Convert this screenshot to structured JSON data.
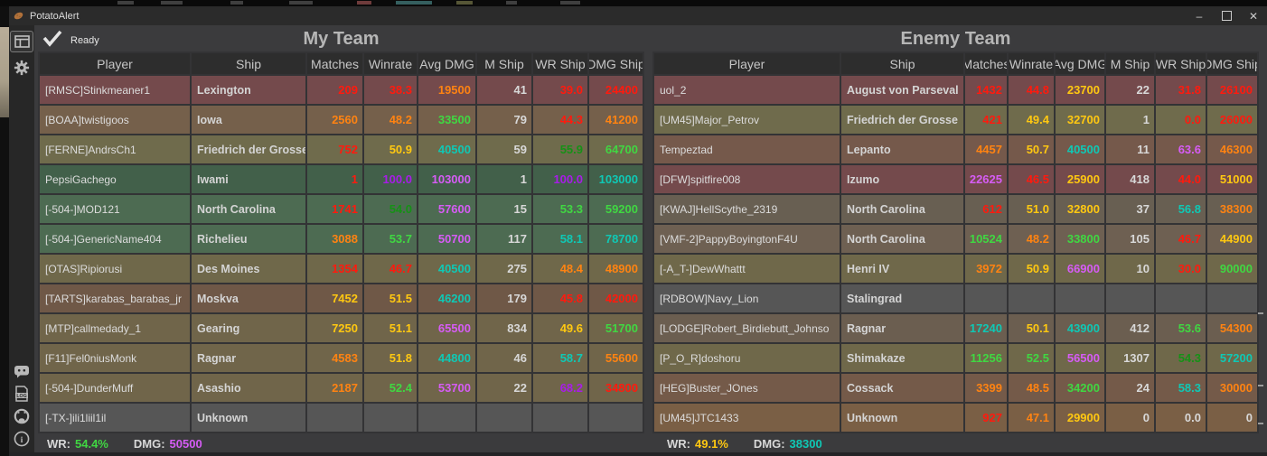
{
  "window": {
    "title": "PotatoAlert",
    "status": "Ready",
    "controls": {
      "minimize": "–",
      "close": "✕"
    }
  },
  "sidebar": {
    "icons": [
      "table-view",
      "settings",
      "discord",
      "log-file",
      "github",
      "info"
    ],
    "log_icon_text": "LOG",
    "info_icon_text": "i"
  },
  "palette": {
    "r": "#ff1a0e",
    "o": "#ff8312",
    "y": "#ffc811",
    "lg": "#40d742",
    "g": "#169116",
    "c": "#0fc8b5",
    "m": "#d65cf5",
    "p": "#a81ce8",
    "w": "#d8d8d8"
  },
  "teams": [
    {
      "title": "My Team",
      "columns": [
        "Player",
        "Ship",
        "Matches",
        "Winrate",
        "Avg DMG",
        "M Ship",
        "WR Ship",
        "DMG Ship"
      ],
      "footer": {
        "wr_label": "WR:",
        "wr": "54.4%",
        "wr_color": "lg",
        "dmg_label": "DMG:",
        "dmg": "50500",
        "dmg_color": "m"
      },
      "rows": [
        {
          "player": "[RMSC]Stinkmeaner1",
          "ship": "Lexington",
          "bg": "#744a4c",
          "stats": [
            [
              "209",
              "r"
            ],
            [
              "38.3",
              "r"
            ],
            [
              "19500",
              "o"
            ],
            [
              "41",
              "w"
            ],
            [
              "39.0",
              "r"
            ],
            [
              "24400",
              "r"
            ]
          ]
        },
        {
          "player": "[BOAA]twistigoos",
          "ship": "Iowa",
          "bg": "#75604b",
          "stats": [
            [
              "2560",
              "o"
            ],
            [
              "48.2",
              "o"
            ],
            [
              "33500",
              "lg"
            ],
            [
              "79",
              "w"
            ],
            [
              "44.3",
              "r"
            ],
            [
              "41200",
              "o"
            ]
          ]
        },
        {
          "player": "[FERNE]AndrsCh1",
          "ship": "Friedrich der Grosse",
          "bg": "#6f6b4c",
          "stats": [
            [
              "752",
              "r"
            ],
            [
              "50.9",
              "y"
            ],
            [
              "40500",
              "c"
            ],
            [
              "59",
              "w"
            ],
            [
              "55.9",
              "g"
            ],
            [
              "64700",
              "lg"
            ]
          ]
        },
        {
          "player": "PepsiGachego",
          "ship": "Iwami",
          "bg": "#42604a",
          "stats": [
            [
              "1",
              "r"
            ],
            [
              "100.0",
              "p"
            ],
            [
              "103000",
              "m"
            ],
            [
              "1",
              "w"
            ],
            [
              "100.0",
              "p"
            ],
            [
              "103000",
              "c"
            ]
          ]
        },
        {
          "player": "[-504-]MOD121",
          "ship": "North Carolina",
          "bg": "#4d6b52",
          "stats": [
            [
              "1741",
              "r"
            ],
            [
              "54.0",
              "g"
            ],
            [
              "57600",
              "m"
            ],
            [
              "15",
              "w"
            ],
            [
              "53.3",
              "lg"
            ],
            [
              "59200",
              "lg"
            ]
          ]
        },
        {
          "player": "[-504-]GenericName404",
          "ship": "Richelieu",
          "bg": "#4d6b52",
          "stats": [
            [
              "3088",
              "o"
            ],
            [
              "53.7",
              "lg"
            ],
            [
              "50700",
              "m"
            ],
            [
              "117",
              "w"
            ],
            [
              "58.1",
              "c"
            ],
            [
              "78700",
              "c"
            ]
          ]
        },
        {
          "player": "[OTAS]Ripiorusi",
          "ship": "Des Moines",
          "bg": "#6f684a",
          "stats": [
            [
              "1354",
              "r"
            ],
            [
              "46.7",
              "r"
            ],
            [
              "40500",
              "c"
            ],
            [
              "275",
              "w"
            ],
            [
              "48.4",
              "o"
            ],
            [
              "48900",
              "o"
            ]
          ]
        },
        {
          "player": "[TARTS]karabas_barabas_jr",
          "ship": "Moskva",
          "bg": "#6f5847",
          "stats": [
            [
              "7452",
              "y"
            ],
            [
              "51.5",
              "y"
            ],
            [
              "46200",
              "c"
            ],
            [
              "179",
              "w"
            ],
            [
              "45.8",
              "r"
            ],
            [
              "42000",
              "r"
            ]
          ]
        },
        {
          "player": "[MTP]callmedady_1",
          "ship": "Gearing",
          "bg": "#70654a",
          "stats": [
            [
              "7250",
              "y"
            ],
            [
              "51.1",
              "y"
            ],
            [
              "65500",
              "m"
            ],
            [
              "834",
              "w"
            ],
            [
              "49.6",
              "y"
            ],
            [
              "51700",
              "lg"
            ]
          ]
        },
        {
          "player": "[F11]Fel0niusMonk",
          "ship": "Ragnar",
          "bg": "#70654a",
          "stats": [
            [
              "4583",
              "o"
            ],
            [
              "51.8",
              "y"
            ],
            [
              "44800",
              "c"
            ],
            [
              "46",
              "w"
            ],
            [
              "58.7",
              "c"
            ],
            [
              "55600",
              "o"
            ]
          ]
        },
        {
          "player": "[-504-]DunderMuff",
          "ship": "Asashio",
          "bg": "#70654a",
          "stats": [
            [
              "2187",
              "o"
            ],
            [
              "52.4",
              "lg"
            ],
            [
              "53700",
              "m"
            ],
            [
              "22",
              "w"
            ],
            [
              "68.2",
              "p"
            ],
            [
              "34800",
              "r"
            ]
          ]
        },
        {
          "player": "[-TX-]ili1liil1il",
          "ship": "Unknown",
          "bg": "#565656",
          "stats": [
            [
              "",
              ""
            ],
            [
              "",
              ""
            ],
            [
              "",
              ""
            ],
            [
              "",
              ""
            ],
            [
              "",
              ""
            ],
            [
              "",
              ""
            ]
          ]
        }
      ]
    },
    {
      "title": "Enemy Team",
      "columns": [
        "Player",
        "Ship",
        "Matches",
        "Winrate",
        "Avg DMG",
        "M Ship",
        "WR Ship",
        "DMG Ship"
      ],
      "footer": {
        "wr_label": "WR:",
        "wr": "49.1%",
        "wr_color": "y",
        "dmg_label": "DMG:",
        "dmg": "38300",
        "dmg_color": "c"
      },
      "rows": [
        {
          "player": "uol_2",
          "ship": "August von Parseval",
          "bg": "#744a4c",
          "stats": [
            [
              "1432",
              "r"
            ],
            [
              "44.8",
              "r"
            ],
            [
              "23700",
              "y"
            ],
            [
              "22",
              "w"
            ],
            [
              "31.8",
              "r"
            ],
            [
              "26100",
              "r"
            ]
          ]
        },
        {
          "player": "[UM45]Major_Petrov",
          "ship": "Friedrich der Grosse",
          "bg": "#6f6b4c",
          "stats": [
            [
              "421",
              "r"
            ],
            [
              "49.4",
              "y"
            ],
            [
              "32700",
              "y"
            ],
            [
              "1",
              "w"
            ],
            [
              "0.0",
              "r"
            ],
            [
              "26000",
              "r"
            ]
          ]
        },
        {
          "player": "Tempeztad",
          "ship": "Lepanto",
          "bg": "#75594b",
          "stats": [
            [
              "4457",
              "o"
            ],
            [
              "50.7",
              "y"
            ],
            [
              "40500",
              "c"
            ],
            [
              "11",
              "w"
            ],
            [
              "63.6",
              "m"
            ],
            [
              "46300",
              "o"
            ]
          ]
        },
        {
          "player": "[DFW]spitfire008",
          "ship": "Izumo",
          "bg": "#744a4c",
          "stats": [
            [
              "22625",
              "m"
            ],
            [
              "46.5",
              "r"
            ],
            [
              "25900",
              "y"
            ],
            [
              "418",
              "w"
            ],
            [
              "44.0",
              "r"
            ],
            [
              "51000",
              "y"
            ]
          ]
        },
        {
          "player": "[KWAJ]HellScythe_2319",
          "ship": "North Carolina",
          "bg": "#685f52",
          "stats": [
            [
              "612",
              "r"
            ],
            [
              "51.0",
              "y"
            ],
            [
              "32800",
              "y"
            ],
            [
              "37",
              "w"
            ],
            [
              "56.8",
              "c"
            ],
            [
              "38300",
              "o"
            ]
          ]
        },
        {
          "player": "[VMF-2]PappyBoyingtonF4U",
          "ship": "North Carolina",
          "bg": "#6e6052",
          "stats": [
            [
              "10524",
              "lg"
            ],
            [
              "48.2",
              "o"
            ],
            [
              "33800",
              "lg"
            ],
            [
              "105",
              "w"
            ],
            [
              "46.7",
              "r"
            ],
            [
              "44900",
              "y"
            ]
          ]
        },
        {
          "player": "[-A_T-]DewWhattt",
          "ship": "Henri IV",
          "bg": "#6f684a",
          "stats": [
            [
              "3972",
              "o"
            ],
            [
              "50.9",
              "y"
            ],
            [
              "66900",
              "m"
            ],
            [
              "10",
              "w"
            ],
            [
              "30.0",
              "r"
            ],
            [
              "90000",
              "lg"
            ]
          ]
        },
        {
          "player": "[RDBOW]Navy_Lion",
          "ship": "Stalingrad",
          "bg": "#565656",
          "stats": [
            [
              "",
              ""
            ],
            [
              "",
              ""
            ],
            [
              "",
              ""
            ],
            [
              "",
              ""
            ],
            [
              "",
              ""
            ],
            [
              "",
              ""
            ]
          ]
        },
        {
          "player": "[LODGE]Robert_Birdiebutt_Johnso",
          "ship": "Ragnar",
          "bg": "#6b5e50",
          "stats": [
            [
              "17240",
              "c"
            ],
            [
              "50.1",
              "y"
            ],
            [
              "43900",
              "c"
            ],
            [
              "412",
              "w"
            ],
            [
              "53.6",
              "lg"
            ],
            [
              "54300",
              "o"
            ]
          ]
        },
        {
          "player": "[P_O_R]doshoru",
          "ship": "Shimakaze",
          "bg": "#6f684a",
          "stats": [
            [
              "11256",
              "lg"
            ],
            [
              "52.5",
              "lg"
            ],
            [
              "56500",
              "m"
            ],
            [
              "1307",
              "w"
            ],
            [
              "54.3",
              "g"
            ],
            [
              "57200",
              "c"
            ]
          ]
        },
        {
          "player": "[HEG]Buster_JOnes",
          "ship": "Cossack",
          "bg": "#745a49",
          "stats": [
            [
              "3399",
              "o"
            ],
            [
              "48.5",
              "o"
            ],
            [
              "34200",
              "lg"
            ],
            [
              "24",
              "w"
            ],
            [
              "58.3",
              "c"
            ],
            [
              "30000",
              "o"
            ]
          ]
        },
        {
          "player": "[UM45]JTC1433",
          "ship": "Unknown",
          "bg": "#7a5f45",
          "stats": [
            [
              "927",
              "r"
            ],
            [
              "47.1",
              "o"
            ],
            [
              "29900",
              "y"
            ],
            [
              "0",
              "w"
            ],
            [
              "0.0",
              "w"
            ],
            [
              "0",
              "w"
            ]
          ]
        }
      ]
    }
  ]
}
